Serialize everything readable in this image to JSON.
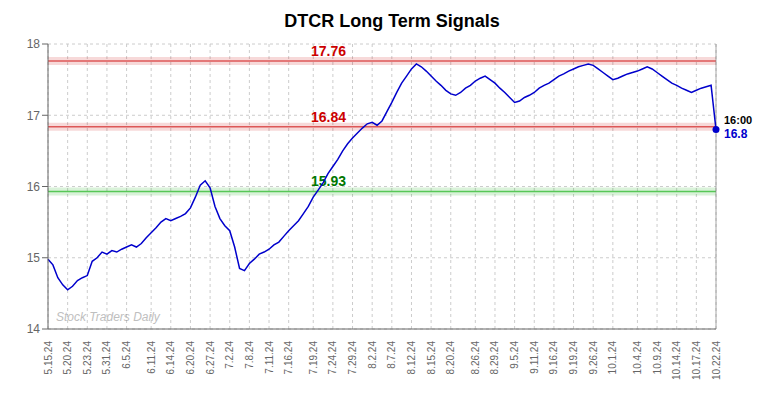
{
  "chart_data": {
    "type": "line",
    "title": "DTCR Long Term Signals",
    "categories": [
      "5.15.24",
      null,
      null,
      null,
      "5.20.24",
      null,
      null,
      null,
      "5.23.24",
      null,
      null,
      null,
      "5.31.24",
      null,
      null,
      null,
      "6.5.24",
      null,
      null,
      null,
      null,
      "6.11.24",
      null,
      null,
      null,
      "6.14.24",
      null,
      null,
      null,
      "6.20.24",
      null,
      null,
      null,
      "6.27.24",
      null,
      null,
      null,
      "7.2.24",
      null,
      null,
      null,
      "7.8.24",
      null,
      null,
      null,
      "7.11.24",
      null,
      null,
      null,
      "7.16.24",
      null,
      null,
      null,
      null,
      "7.19.24",
      null,
      null,
      null,
      "7.24.24",
      null,
      null,
      null,
      "7.29.24",
      null,
      null,
      null,
      "8.2.24",
      null,
      null,
      null,
      "8.7.24",
      null,
      null,
      null,
      "8.12.24",
      null,
      null,
      null,
      "8.15.24",
      null,
      null,
      null,
      "8.20.24",
      null,
      null,
      null,
      null,
      "8.26.24",
      null,
      null,
      null,
      "8.29.24",
      null,
      null,
      null,
      "9.5.24",
      null,
      null,
      null,
      "9.11.24",
      null,
      null,
      null,
      "9.16.24",
      null,
      null,
      null,
      "9.19.24",
      null,
      null,
      null,
      "9.26.24",
      null,
      null,
      null,
      "10.1.24",
      null,
      null,
      null,
      null,
      "10.4.24",
      null,
      null,
      null,
      "10.9.24",
      null,
      null,
      null,
      "10.14.24",
      null,
      null,
      null,
      "10.17.24",
      null,
      null,
      null,
      "10.22.24"
    ],
    "values": [
      14.98,
      14.9,
      14.72,
      14.62,
      14.55,
      14.6,
      14.68,
      14.72,
      14.75,
      14.95,
      15.0,
      15.08,
      15.05,
      15.1,
      15.08,
      15.12,
      15.15,
      15.18,
      15.15,
      15.2,
      15.28,
      15.35,
      15.42,
      15.5,
      15.55,
      15.52,
      15.55,
      15.58,
      15.62,
      15.7,
      15.85,
      16.02,
      16.08,
      15.98,
      15.72,
      15.55,
      15.45,
      15.38,
      15.15,
      14.85,
      14.82,
      14.92,
      14.98,
      15.05,
      15.08,
      15.12,
      15.18,
      15.22,
      15.3,
      15.38,
      15.45,
      15.52,
      15.62,
      15.72,
      15.85,
      15.95,
      16.05,
      16.18,
      16.28,
      16.38,
      16.5,
      16.6,
      16.68,
      16.75,
      16.82,
      16.88,
      16.9,
      16.86,
      16.92,
      17.05,
      17.18,
      17.32,
      17.45,
      17.55,
      17.65,
      17.72,
      17.68,
      17.62,
      17.55,
      17.48,
      17.42,
      17.35,
      17.3,
      17.28,
      17.32,
      17.38,
      17.42,
      17.48,
      17.52,
      17.55,
      17.5,
      17.45,
      17.38,
      17.32,
      17.25,
      17.18,
      17.2,
      17.25,
      17.28,
      17.32,
      17.38,
      17.42,
      17.45,
      17.5,
      17.55,
      17.58,
      17.62,
      17.65,
      17.68,
      17.7,
      17.72,
      17.7,
      17.65,
      17.6,
      17.55,
      17.5,
      17.52,
      17.55,
      17.58,
      17.6,
      17.62,
      17.65,
      17.68,
      17.65,
      17.6,
      17.55,
      17.5,
      17.45,
      17.42,
      17.38,
      17.35,
      17.32,
      17.35,
      17.38,
      17.4,
      17.42,
      16.8
    ],
    "color": "#0000CC",
    "ylim": [
      14,
      18
    ],
    "yticks": [
      14,
      15,
      16,
      17,
      18
    ],
    "grid": true,
    "hlines": [
      {
        "value": 17.76,
        "label": "17.76",
        "color": "#CC0000",
        "label_color": "#CC0000"
      },
      {
        "value": 16.84,
        "label": "16.84",
        "color": "#CC0000",
        "label_color": "#CC0000"
      },
      {
        "value": 15.93,
        "label": "15.93",
        "color": "#00AA00",
        "label_color": "#007700"
      }
    ],
    "last_point_labels": {
      "time": "16:00",
      "value": "16.8"
    },
    "watermark": "Stock Traders Daily"
  }
}
